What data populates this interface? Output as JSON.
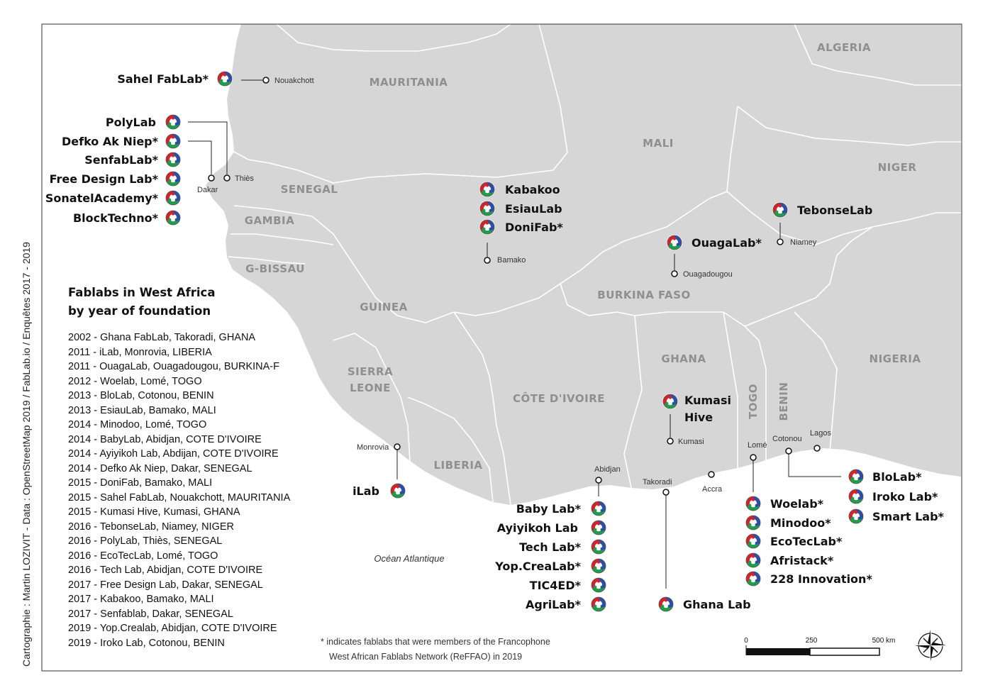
{
  "credit": "Cartographie : Martin LOZIVIT - Data : OpenStreetMap 2019 / FabLab.io / Enquêtes 2017 - 2019",
  "countries": {
    "algeria": "ALGERIA",
    "mauritania": "MAURITANIA",
    "mali": "MALI",
    "niger": "NIGER",
    "senegal": "SENEGAL",
    "gambia": "GAMBIA",
    "gbissau": "G-BISSAU",
    "guinea": "GUINEA",
    "burkina": "BURKINA FASO",
    "sierra1": "SIERRA",
    "sierra2": "LEONE",
    "liberia": "LIBERIA",
    "cotedivoire": "CÔTE D'IVOIRE",
    "ghana": "GHANA",
    "togo": "TOGO",
    "benin": "BENIN",
    "nigeria": "NIGERIA"
  },
  "ocean": "Océan Atlantique",
  "cities": {
    "nouakchott": "Nouakchott",
    "dakar": "Dakar",
    "thies": "Thiès",
    "bamako": "Bamako",
    "ouagadougou": "Ouagadougou",
    "niamey": "Niamey",
    "monrovia": "Monrovia",
    "abidjan": "Abidjan",
    "takoradi": "Takoradi",
    "accra": "Accra",
    "kumasi": "Kumasi",
    "lome": "Lomé",
    "cotonou": "Cotonou",
    "lagos": "Lagos"
  },
  "labs": {
    "sahel": "Sahel FabLab*",
    "polylab": "PolyLab",
    "defko": "Defko Ak Niep*",
    "senfab": "SenfabLab*",
    "freedesign": "Free Design Lab*",
    "sonatel": "SonatelAcademy*",
    "blocktechno": "BlockTechno*",
    "kabakoo": "Kabakoo",
    "esiau": "EsiauLab",
    "donifab": "DoniFab*",
    "ouagalab": "OuagaLab*",
    "tebonse": "TebonseLab",
    "kumasi1": "Kumasi",
    "kumasi2": "Hive",
    "ilab": "iLab",
    "baby": "Baby Lab*",
    "ayiyikoh": "Ayiyikoh Lab",
    "tech": "Tech Lab*",
    "yop": "Yop.CreaLab*",
    "tic4ed": "TIC4ED*",
    "agri": "AgriLab*",
    "ghanalab": "Ghana Lab",
    "woelab": "Woelab*",
    "minodoo": "Minodoo*",
    "ecotec": "EcoTecLab*",
    "afristack": "Afristack*",
    "innov228": "228 Innovation*",
    "blolab": "BloLab*",
    "iroko": "Iroko Lab*",
    "smart": "Smart Lab*"
  },
  "legend": {
    "title1": "Fablabs in West Africa",
    "title2": "by year of foundation",
    "items": [
      "2002 - Ghana FabLab, Takoradi, GHANA",
      "2011 - iLab, Monrovia, LIBERIA",
      "2011 - OuagaLab, Ouagadougou, BURKINA-F",
      "2012 - Woelab, Lomé, TOGO",
      "2013 - BloLab, Cotonou, BENIN",
      "2013 - EsiauLab, Bamako, MALI",
      "2014 - Minodoo, Lomé, TOGO",
      "2014 - BabyLab, Abidjan, COTE D'IVOIRE",
      "2014 - Ayiyikoh Lab, Abdijan, COTE D'IVOIRE",
      "2014 - Defko Ak Niep, Dakar, SENEGAL",
      "2015 - DoniFab, Bamako, MALI",
      "2015 - Sahel FabLab, Nouakchott, MAURITANIA",
      "2015 - Kumasi Hive, Kumasi, GHANA",
      "2016 - TebonseLab, Niamey, NIGER",
      "2016 - PolyLab, Thiès, SENEGAL",
      "2016 - EcoTecLab, Lomé, TOGO",
      "2016 - Tech Lab, Abidjan, COTE D'IVOIRE",
      "2017 - Free Design Lab, Dakar, SENEGAL",
      "2017 - Kabakoo, Bamako, MALI",
      "2017 - Senfablab, Dakar, SENEGAL",
      "2019 - Yop.Crealab, Abidjan, COTE D'IVOIRE",
      "2019 - Iroko Lab, Cotonou, BENIN"
    ]
  },
  "footnote": {
    "line1": "* indicates fablabs that were members of the Francophone",
    "line2": "West African Fablabs Network (ReFFAO) in 2019"
  },
  "scale": {
    "t0": "0",
    "t1": "250",
    "t2": "500 km"
  },
  "colors": {
    "land": "#d6d6d6",
    "border": "#ffffff",
    "sea": "#ffffff",
    "icon_red": "#d2232a",
    "icon_green": "#1f9d4a",
    "icon_blue": "#2b4fa8"
  },
  "icons": {
    "fablab": "fablab-logo-icon",
    "compass": "compass-rose-icon"
  }
}
